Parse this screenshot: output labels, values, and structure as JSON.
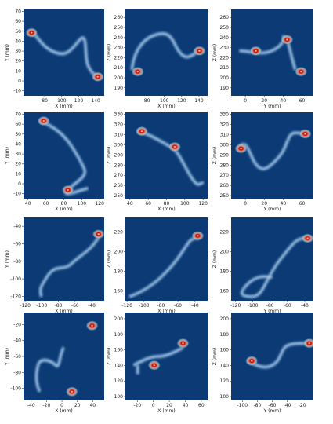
{
  "chart_data": [
    {
      "type": "heatmap",
      "xlabel": "X (mm)",
      "ylabel": "Y (mm)",
      "xlim": [
        55,
        150
      ],
      "ylim": [
        -15,
        72
      ],
      "xticks": [
        80,
        100,
        120,
        140
      ],
      "yticks": [
        -10,
        0,
        10,
        20,
        30,
        40,
        50,
        60,
        70
      ]
    },
    {
      "type": "heatmap",
      "xlabel": "X (mm)",
      "ylabel": "Z (mm)",
      "xlim": [
        55,
        150
      ],
      "ylim": [
        182,
        268
      ],
      "xticks": [
        80,
        100,
        120,
        140
      ],
      "yticks": [
        190,
        200,
        210,
        220,
        230,
        240,
        250,
        260
      ]
    },
    {
      "type": "heatmap",
      "xlabel": "Y (mm)",
      "ylabel": "Z (mm)",
      "xlim": [
        -15,
        72
      ],
      "ylim": [
        182,
        268
      ],
      "xticks": [
        0,
        20,
        40,
        60
      ],
      "yticks": [
        190,
        200,
        210,
        220,
        230,
        240,
        250,
        260
      ]
    },
    {
      "type": "heatmap",
      "xlabel": "X (mm)",
      "ylabel": "Y (mm)",
      "xlim": [
        35,
        125
      ],
      "ylim": [
        -15,
        72
      ],
      "xticks": [
        40,
        60,
        80,
        100,
        120
      ],
      "yticks": [
        -10,
        0,
        10,
        20,
        30,
        40,
        50,
        60,
        70
      ]
    },
    {
      "type": "heatmap",
      "xlabel": "X (mm)",
      "ylabel": "Z (mm)",
      "xlim": [
        35,
        125
      ],
      "ylim": [
        247,
        332
      ],
      "xticks": [
        40,
        60,
        80,
        100,
        120
      ],
      "yticks": [
        250,
        260,
        270,
        280,
        290,
        300,
        310,
        320,
        330
      ]
    },
    {
      "type": "heatmap",
      "xlabel": "Y (mm)",
      "ylabel": "Z (mm)",
      "xlim": [
        -15,
        72
      ],
      "ylim": [
        247,
        332
      ],
      "xticks": [
        0,
        20,
        40,
        60
      ],
      "yticks": [
        250,
        260,
        270,
        280,
        290,
        300,
        310,
        320,
        330
      ]
    },
    {
      "type": "heatmap",
      "xlabel": "X (mm)",
      "ylabel": "Y (mm)",
      "xlim": [
        -122,
        -25
      ],
      "ylim": [
        -125,
        -30
      ],
      "xticks": [
        -120,
        -100,
        -80,
        -60,
        -40
      ],
      "yticks": [
        -120,
        -100,
        -80,
        -60,
        -40
      ]
    },
    {
      "type": "heatmap",
      "xlabel": "X (mm)",
      "ylabel": "Z (mm)",
      "xlim": [
        -122,
        -25
      ],
      "ylim": [
        150,
        235
      ],
      "xticks": [
        -120,
        -100,
        -80,
        -60,
        -40
      ],
      "yticks": [
        160,
        180,
        200,
        220
      ]
    },
    {
      "type": "heatmap",
      "xlabel": "Y (mm)",
      "ylabel": "Z (mm)",
      "xlim": [
        -125,
        -30
      ],
      "ylim": [
        150,
        235
      ],
      "xticks": [
        -120,
        -100,
        -80,
        -60,
        -40
      ],
      "yticks": [
        160,
        180,
        200,
        220
      ]
    },
    {
      "type": "heatmap",
      "xlabel": "X (mm)",
      "ylabel": "Y (mm)",
      "xlim": [
        -50,
        55
      ],
      "ylim": [
        -115,
        -5
      ],
      "xticks": [
        -40,
        -20,
        0,
        20,
        40
      ],
      "yticks": [
        -100,
        -80,
        -60,
        -40,
        -20
      ]
    },
    {
      "type": "heatmap",
      "xlabel": "X (mm)",
      "ylabel": "Z (mm)",
      "xlim": [
        -35,
        68
      ],
      "ylim": [
        95,
        208
      ],
      "xticks": [
        -20,
        0,
        20,
        40,
        60
      ],
      "yticks": [
        100,
        120,
        140,
        160,
        180,
        200
      ]
    },
    {
      "type": "heatmap",
      "xlabel": "Y (mm)",
      "ylabel": "Z (mm)",
      "xlim": [
        -115,
        -5
      ],
      "ylim": [
        95,
        208
      ],
      "xticks": [
        -100,
        -80,
        -60,
        -40,
        -20
      ],
      "yticks": [
        100,
        120,
        140,
        160,
        180,
        200
      ]
    }
  ]
}
